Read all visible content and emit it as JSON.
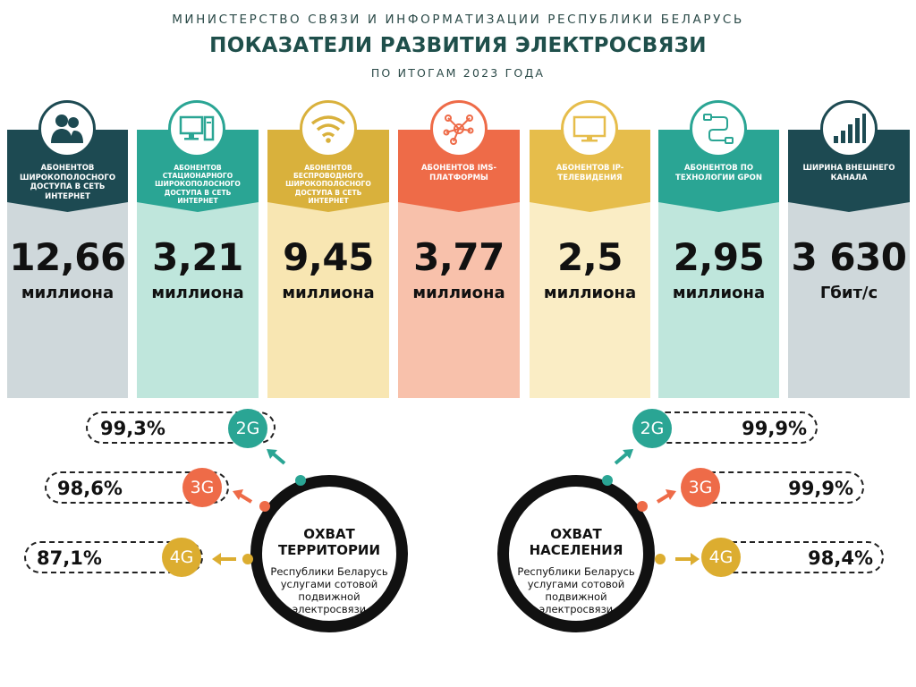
{
  "header": {
    "ministry": "МИНИСТЕРСТВО СВЯЗИ И ИНФОРМАТИЗАЦИИ РЕСПУБЛИКИ БЕЛАРУСЬ",
    "title": "ПОКАЗАТЕЛИ РАЗВИТИЯ ЭЛЕКТРОСВЯЗИ",
    "subtitle": "ПО ИТОГАМ 2023 ГОДА"
  },
  "columns": [
    {
      "label": "АБОНЕНТОВ ШИРОКОПОЛОСНОГО ДОСТУПА В СЕТЬ ИНТЕРНЕТ",
      "value": "12,66",
      "unit": "миллиона",
      "icon": "users-icon",
      "head_color": "#1d4a52",
      "body_color": "#cfd8db"
    },
    {
      "label": "АБОНЕНТОВ СТАЦИОНАРНОГО ШИРОКОПОЛОСНОГО ДОСТУПА В СЕТЬ ИНТЕРНЕТ",
      "value": "3,21",
      "unit": "миллиона",
      "icon": "desktop-computer-icon",
      "head_color": "#2aa594",
      "body_color": "#bfe6dc"
    },
    {
      "label": "АБОНЕНТОВ БЕСПРОВОДНОГО ШИРОКОПОЛОСНОГО ДОСТУПА В СЕТЬ ИНТЕРНЕТ",
      "value": "9,45",
      "unit": "миллиона",
      "icon": "wifi-icon",
      "head_color": "#d9b13c",
      "body_color": "#f8e6b2"
    },
    {
      "label": "АБОНЕНТОВ IMS-ПЛАТФОРМЫ",
      "value": "3,77",
      "unit": "миллиона",
      "icon": "network-nodes-icon",
      "head_color": "#ee6b48",
      "body_color": "#f8c1ab"
    },
    {
      "label": "АБОНЕНТОВ IP-ТЕЛЕВИДЕНИЯ",
      "value": "2,5",
      "unit": "миллиона",
      "icon": "tv-monitor-icon",
      "head_color": "#e6bd4b",
      "body_color": "#faedc5"
    },
    {
      "label": "АБОНЕНТОВ ПО ТЕХНОЛОГИИ GPON",
      "value": "2,95",
      "unit": "миллиона",
      "icon": "fiber-cable-icon",
      "head_color": "#2aa594",
      "body_color": "#bfe6dc"
    },
    {
      "label": "ШИРИНА ВНЕШНЕГО КАНАЛА",
      "value": "3 630",
      "unit": "Гбит/с",
      "icon": "bar-chart-icon",
      "head_color": "#1d4a52",
      "body_color": "#cfd8db"
    }
  ],
  "coverage_territory": {
    "title_line1": "ОХВАТ",
    "title_line2": "ТЕРРИТОРИИ",
    "desc_line1": "Республики Беларусь",
    "desc_line2": "услугами сотовой",
    "desc_line3": "подвижной",
    "desc_line4": "электросвязи",
    "items": [
      {
        "gen": "2G",
        "value": "99,3%",
        "color": "#2aa594"
      },
      {
        "gen": "3G",
        "value": "98,6%",
        "color": "#ee6b48"
      },
      {
        "gen": "4G",
        "value": "87,1%",
        "color": "#dcad30"
      }
    ]
  },
  "coverage_population": {
    "title_line1": "ОХВАТ",
    "title_line2": "НАСЕЛЕНИЯ",
    "desc_line1": "Республики Беларусь",
    "desc_line2": "услугами сотовой",
    "desc_line3": "подвижной",
    "desc_line4": "электросвязи",
    "items": [
      {
        "gen": "2G",
        "value": "99,9%",
        "color": "#2aa594"
      },
      {
        "gen": "3G",
        "value": "99,9%",
        "color": "#ee6b48"
      },
      {
        "gen": "4G",
        "value": "98,4%",
        "color": "#dcad30"
      }
    ]
  }
}
